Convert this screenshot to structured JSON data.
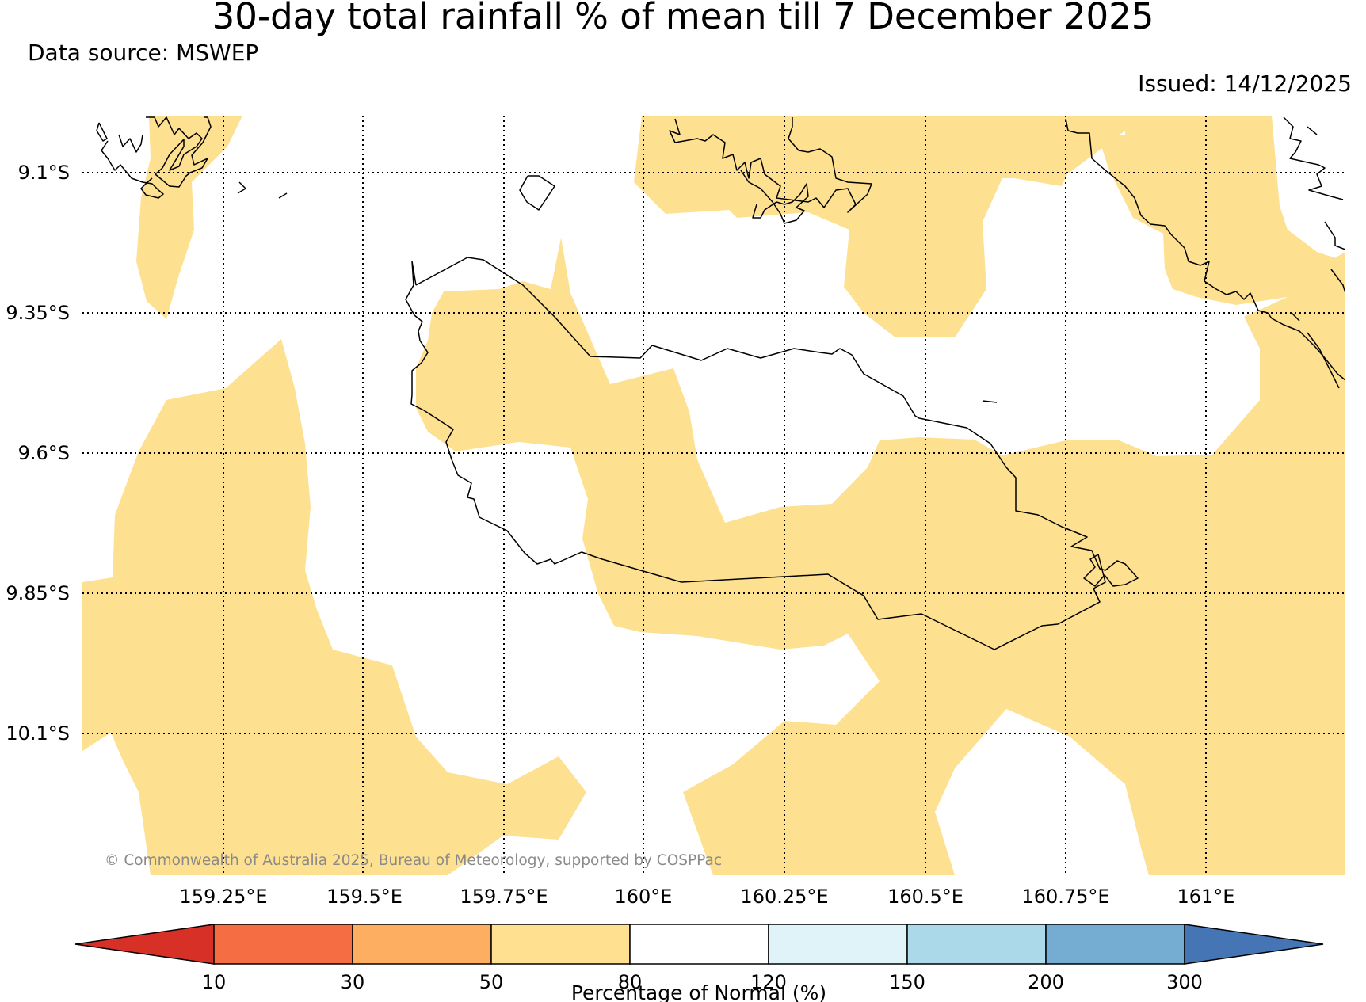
{
  "title": "30-day total rainfall % of mean till 7 December 2025",
  "data_source": "Data source: MSWEP",
  "issued": "Issued: 14/12/2025",
  "copyright": "© Commonwealth of Australia 2025, Bureau of Meteorology, supported by COSPPac",
  "map": {
    "lat_labels": [
      "9.1°S",
      "9.35°S",
      "9.6°S",
      "9.85°S",
      "10.1°S"
    ],
    "lon_labels": [
      "159.25°E",
      "159.5°E",
      "159.75°E",
      "160°E",
      "160.25°E",
      "160.5°E",
      "160.75°E",
      "161°E"
    ],
    "shaded_category": "50–80 %",
    "shading_color": "#fde090"
  },
  "legend": {
    "label": "Percentage of Normal (%)",
    "ticks": [
      "10",
      "30",
      "50",
      "80",
      "120",
      "150",
      "200",
      "300"
    ],
    "colors": [
      "#d73027",
      "#f46d43",
      "#fdae61",
      "#fee090",
      "#ffffff",
      "#e0f3f8",
      "#abd9e9",
      "#74add1",
      "#4575b4"
    ]
  }
}
